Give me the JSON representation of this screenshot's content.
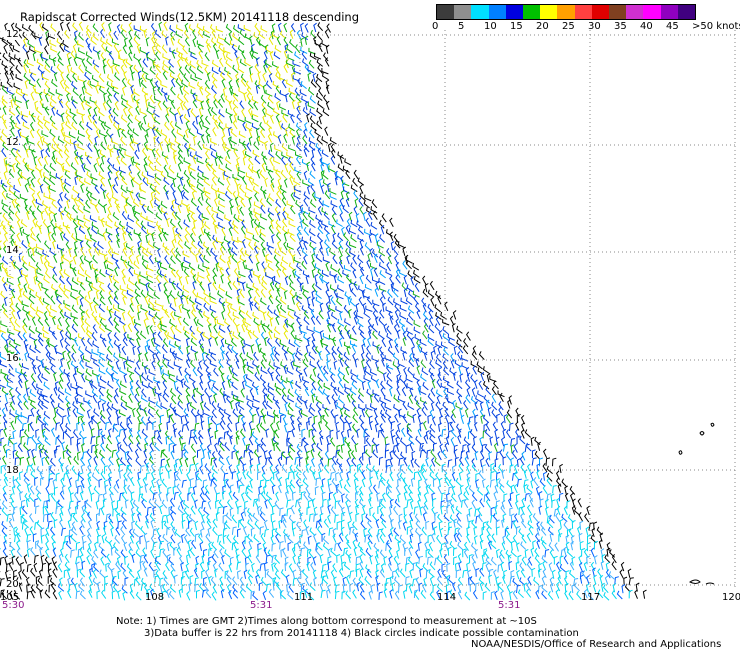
{
  "title": "Rapidscat Corrected Winds(12.5KM) 20141118 descending",
  "legend": {
    "ticks": [
      "0",
      "5",
      "10",
      "15",
      "20",
      "25",
      "30",
      "35",
      "40",
      "45",
      ">50 knots"
    ],
    "colors": [
      "#3c3c3c",
      "#8f8f8f",
      "#00e0ff",
      "#0080ff",
      "#0000e0",
      "#00c000",
      "#ffff00",
      "#ffa000",
      "#ff4040",
      "#e00000",
      "#804020",
      "#d030d0",
      "#ff00ff",
      "#9000c0",
      "#400080"
    ]
  },
  "latitude_labels": [
    "12",
    "12",
    "14",
    "16",
    "18",
    "20"
  ],
  "longitude_labels": [
    "105",
    "108",
    "111",
    "114",
    "117",
    "120"
  ],
  "time_labels": [
    "5:30",
    "5:31",
    "5:31"
  ],
  "notes": {
    "line1": "Note: 1) Times are GMT 2)Times along bottom correspond to measurement at ~10S",
    "line2": "3)Data buffer is 22 hrs from 20141118 4) Black circles indicate possible contamination",
    "line3": "NOAA/NESDIS/Office of Research and Applications"
  }
}
